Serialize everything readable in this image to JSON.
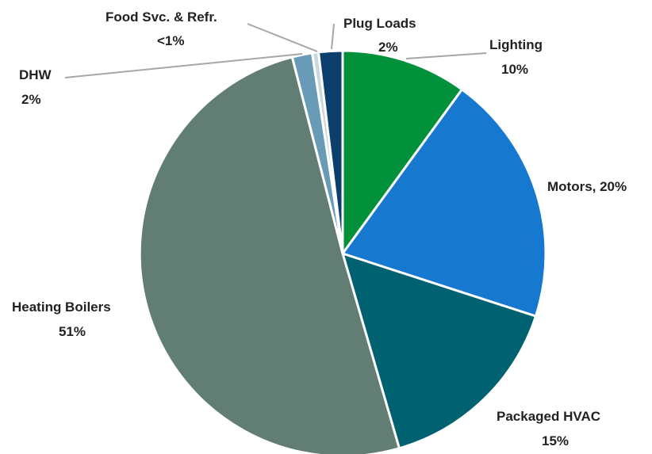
{
  "chart_data": {
    "type": "pie",
    "title": "",
    "start_angle_deg": 0,
    "direction": "clockwise",
    "slices": [
      {
        "key": "lighting",
        "value": 10,
        "color": "#00913a",
        "label": "Lighting",
        "value_label": "10%"
      },
      {
        "key": "motors",
        "value": 20,
        "color": "#1778d0",
        "label": "Motors, 20%",
        "value_label": ""
      },
      {
        "key": "packaged-hvac",
        "value": 15.5,
        "color": "#006170",
        "label": "Packaged HVAC",
        "value_label": "15%"
      },
      {
        "key": "heating-boilers",
        "value": 50.5,
        "color": "#627d74",
        "label": "Heating Boilers",
        "value_label": "51%"
      },
      {
        "key": "dhw",
        "value": 1.6,
        "color": "#689bb6",
        "label": "DHW",
        "value_label": "2%"
      },
      {
        "key": "food-svc-refr",
        "value": 0.5,
        "color": "#c9d7df",
        "label": "Food Svc. & Refr.",
        "value_label": "<1%"
      },
      {
        "key": "plug-loads",
        "value": 1.9,
        "color": "#0d3f6c",
        "label": "Plug Loads",
        "value_label": "2%"
      }
    ],
    "legend": "none"
  }
}
